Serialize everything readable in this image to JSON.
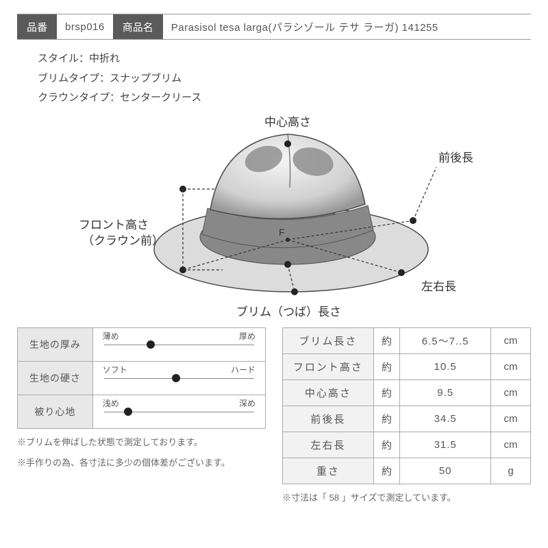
{
  "header": {
    "code_label": "品番",
    "code_value": "brsp016",
    "name_label": "商品名",
    "name_value": "Parasisol tesa larga(パラシゾール テサ ラーガ) 141255"
  },
  "specs": {
    "style": "スタイル：中折れ",
    "brim_type": "ブリムタイプ：スナップブリム",
    "crown_type": "クラウンタイプ：センタークリース"
  },
  "diagram": {
    "label_center_height": "中心高さ",
    "label_front_back": "前後長",
    "label_front_height_1": "フロント高さ",
    "label_front_height_2": "（クラウン前）",
    "label_left_right": "左右長",
    "label_brim_len": "ブリム（つば）長さ",
    "center_mark": "F",
    "colors": {
      "outline": "#4a4a4a",
      "crown_light": "#ececec",
      "crown_shadow": "#8a8a8a",
      "band": "#888888",
      "brim_top": "#dcdcdc",
      "brim_under": "#bfbfbf",
      "marker": "#222222"
    }
  },
  "sliders": [
    {
      "label": "生地の厚み",
      "left": "薄め",
      "right": "厚め",
      "value_pct": 32
    },
    {
      "label": "生地の硬さ",
      "left": "ソフト",
      "right": "ハード",
      "value_pct": 48
    },
    {
      "label": "被り心地",
      "left": "浅め",
      "right": "深め",
      "value_pct": 18
    }
  ],
  "slider_notes": {
    "n1": "※ブリムを伸ばした状態で測定しております。",
    "n2": "※手作りの為、各寸法に多少の個体差がございます。"
  },
  "dims": {
    "approx": "約",
    "rows": [
      {
        "name": "ブリム長さ",
        "val": "6.5～7..5",
        "unit": "cm"
      },
      {
        "name": "フロント高さ",
        "val": "10.5",
        "unit": "cm"
      },
      {
        "name": "中心高さ",
        "val": "9.5",
        "unit": "cm"
      },
      {
        "name": "前後長",
        "val": "34.5",
        "unit": "cm"
      },
      {
        "name": "左右長",
        "val": "31.5",
        "unit": "cm"
      },
      {
        "name": "重さ",
        "val": "50",
        "unit": "g"
      }
    ],
    "note_prefix": "※寸法は「",
    "note_size": "58",
    "note_suffix": "」サイズで測定しています。"
  }
}
